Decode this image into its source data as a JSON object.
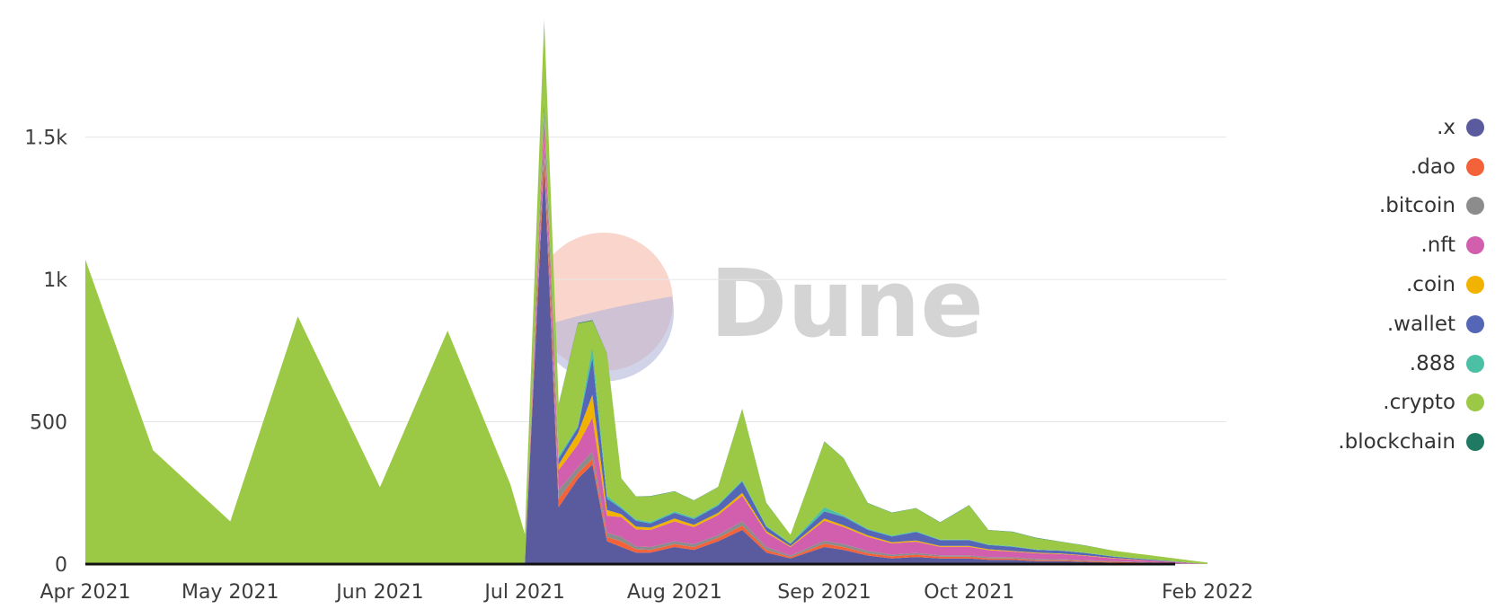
{
  "watermark": {
    "text": "Dune"
  },
  "chart_data": {
    "type": "area",
    "stacked": true,
    "x_tick_labels": [
      "Apr 2021",
      "May 2021",
      "Jun 2021",
      "Jul 2021",
      "Aug 2021",
      "Sep 2021",
      "Oct 2021",
      "Feb 2022"
    ],
    "y_tick_labels": [
      "0",
      "500",
      "1k",
      "1.5k"
    ],
    "y_ticks": [
      0,
      500,
      1000,
      1500
    ],
    "ylim": [
      0,
      1950
    ],
    "grid": true,
    "legend_position": "right",
    "x": [
      "2021-04-01",
      "2021-04-15",
      "2021-05-01",
      "2021-05-15",
      "2021-06-01",
      "2021-06-15",
      "2021-06-28",
      "2021-07-01",
      "2021-07-05",
      "2021-07-08",
      "2021-07-12",
      "2021-07-15",
      "2021-07-18",
      "2021-07-21",
      "2021-07-24",
      "2021-07-27",
      "2021-08-01",
      "2021-08-05",
      "2021-08-10",
      "2021-08-15",
      "2021-08-20",
      "2021-08-25",
      "2021-09-01",
      "2021-09-05",
      "2021-09-10",
      "2021-09-15",
      "2021-09-20",
      "2021-09-25",
      "2021-10-01",
      "2021-10-05",
      "2021-10-10",
      "2021-10-15",
      "2021-10-20",
      "2021-10-25",
      "2021-10-31",
      "2022-02-01"
    ],
    "series": [
      {
        "name": ".x",
        "color": "#5a5a9e",
        "values": [
          0,
          0,
          0,
          0,
          0,
          0,
          0,
          5,
          1400,
          200,
          300,
          350,
          80,
          60,
          40,
          40,
          60,
          50,
          80,
          120,
          40,
          20,
          60,
          50,
          30,
          20,
          25,
          20,
          20,
          15,
          15,
          10,
          10,
          8,
          5,
          0
        ]
      },
      {
        "name": ".dao",
        "color": "#f4623a",
        "values": [
          0,
          0,
          0,
          0,
          0,
          0,
          0,
          0,
          50,
          30,
          20,
          20,
          15,
          20,
          12,
          10,
          10,
          10,
          12,
          15,
          10,
          5,
          12,
          10,
          8,
          7,
          8,
          6,
          6,
          5,
          5,
          4,
          4,
          3,
          3,
          0
        ]
      },
      {
        "name": ".bitcoin",
        "color": "#8c8c8c",
        "values": [
          0,
          0,
          0,
          0,
          0,
          0,
          0,
          0,
          40,
          30,
          20,
          25,
          15,
          15,
          10,
          10,
          10,
          10,
          10,
          15,
          10,
          5,
          10,
          10,
          8,
          6,
          6,
          5,
          5,
          4,
          4,
          4,
          3,
          3,
          2,
          0
        ]
      },
      {
        "name": ".nft",
        "color": "#d15fad",
        "values": [
          0,
          0,
          0,
          0,
          0,
          0,
          0,
          0,
          80,
          70,
          80,
          120,
          60,
          70,
          60,
          60,
          70,
          60,
          70,
          90,
          50,
          30,
          70,
          60,
          50,
          40,
          40,
          30,
          30,
          25,
          20,
          20,
          18,
          15,
          10,
          0
        ]
      },
      {
        "name": ".coin",
        "color": "#f1b300",
        "values": [
          0,
          0,
          0,
          0,
          0,
          0,
          0,
          0,
          20,
          20,
          40,
          80,
          20,
          10,
          10,
          8,
          10,
          8,
          8,
          10,
          6,
          3,
          8,
          6,
          5,
          4,
          4,
          3,
          3,
          3,
          2,
          2,
          2,
          2,
          1,
          0
        ]
      },
      {
        "name": ".wallet",
        "color": "#5566b7",
        "values": [
          0,
          0,
          0,
          0,
          0,
          0,
          0,
          0,
          30,
          20,
          20,
          130,
          40,
          20,
          20,
          15,
          20,
          20,
          25,
          40,
          15,
          8,
          25,
          30,
          20,
          20,
          30,
          20,
          20,
          15,
          15,
          10,
          10,
          8,
          5,
          0
        ]
      },
      {
        "name": ".888",
        "color": "#4cc0a4",
        "values": [
          0,
          0,
          0,
          0,
          0,
          0,
          0,
          0,
          10,
          10,
          5,
          40,
          10,
          5,
          5,
          5,
          5,
          5,
          5,
          5,
          3,
          2,
          15,
          5,
          3,
          3,
          3,
          2,
          2,
          2,
          2,
          1,
          1,
          1,
          1,
          0
        ]
      },
      {
        "name": ".crypto",
        "color": "#9bc946",
        "values": [
          1070,
          400,
          150,
          870,
          270,
          820,
          280,
          100,
          280,
          180,
          360,
          90,
          500,
          100,
          80,
          90,
          70,
          60,
          60,
          250,
          80,
          30,
          230,
          200,
          90,
          80,
          80,
          60,
          120,
          50,
          50,
          40,
          30,
          25,
          20,
          5
        ]
      },
      {
        "name": ".blockchain",
        "color": "#1e7a63",
        "values": [
          0,
          0,
          0,
          0,
          0,
          0,
          0,
          0,
          2,
          2,
          2,
          2,
          1,
          1,
          1,
          1,
          1,
          1,
          1,
          1,
          1,
          0,
          1,
          1,
          1,
          1,
          1,
          1,
          1,
          1,
          1,
          1,
          1,
          1,
          0,
          0
        ]
      }
    ]
  }
}
